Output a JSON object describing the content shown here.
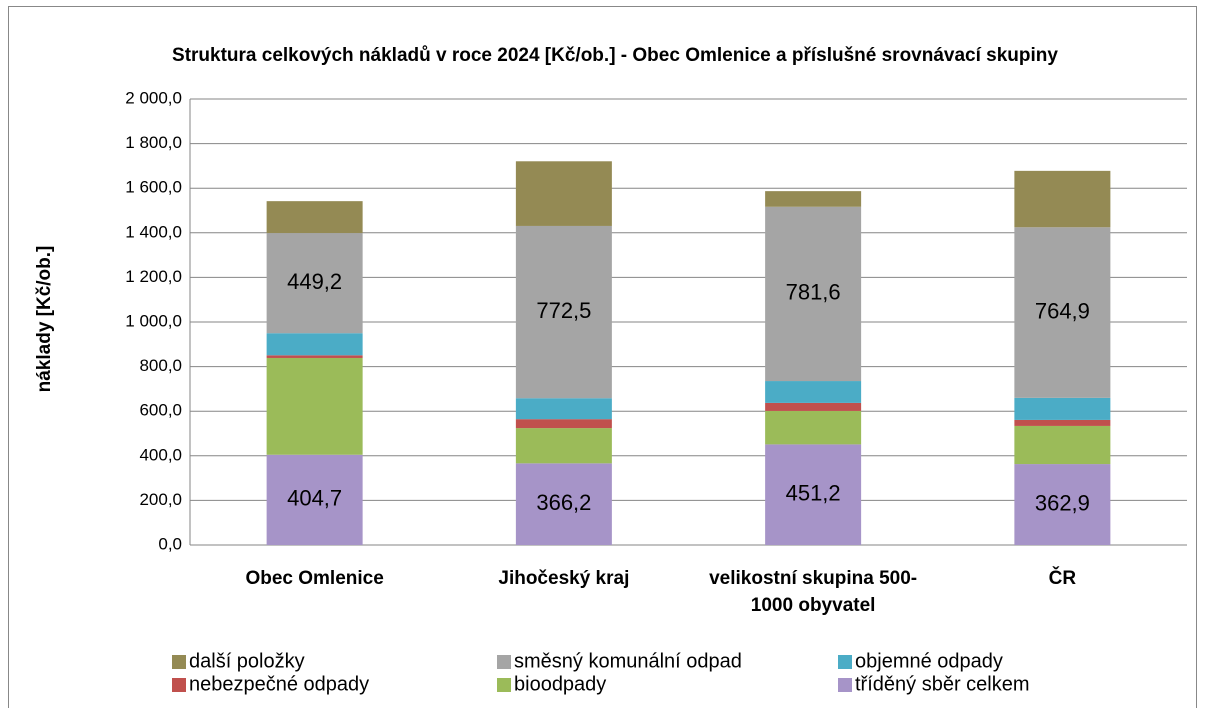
{
  "chart_data": {
    "type": "stacked_bar",
    "title": "Struktura celkových nákladů v roce 2024 [Kč/ob.] - Obec Omlenice a příslušné srovnávací skupiny",
    "y_label": "náklady [Kč/ob.]",
    "categories": [
      "Obec Omlenice",
      "Jihočeský kraj",
      "velikostní skupina 500-1000 obyvatel",
      "ČR"
    ],
    "ylim": [
      0,
      2000
    ],
    "yticks": [
      {
        "value": 0,
        "label": "0,0"
      },
      {
        "value": 200,
        "label": "200,0"
      },
      {
        "value": 400,
        "label": "400,0"
      },
      {
        "value": 600,
        "label": "600,0"
      },
      {
        "value": 800,
        "label": "800,0"
      },
      {
        "value": 1000,
        "label": "1 000,0"
      },
      {
        "value": 1200,
        "label": "1 200,0"
      },
      {
        "value": 1400,
        "label": "1 400,0"
      },
      {
        "value": 1600,
        "label": "1 600,0"
      },
      {
        "value": 1800,
        "label": "1 800,0"
      },
      {
        "value": 2000,
        "label": "2 000,0"
      }
    ],
    "grid": true,
    "series": [
      {
        "name": "tříděný sběr celkem",
        "color": "#a694c8",
        "values": [
          404.7,
          366.2,
          451.2,
          362.9
        ],
        "value_labels": [
          "404,7",
          "366,2",
          "451,2",
          "362,9"
        ]
      },
      {
        "name": "bioodpady",
        "color": "#9bbb59",
        "values": [
          434,
          158,
          150,
          171
        ]
      },
      {
        "name": "nebezpečné odpady",
        "color": "#c0504d",
        "values": [
          12,
          40,
          36,
          27
        ]
      },
      {
        "name": "objemné odpady",
        "color": "#4bacc6",
        "values": [
          99,
          94,
          98,
          99
        ]
      },
      {
        "name": "směsný komunální odpad",
        "color": "#a5a5a5",
        "values": [
          449.2,
          772.5,
          781.6,
          764.9
        ],
        "value_labels": [
          "449,2",
          "772,5",
          "781,6",
          "764,9"
        ]
      },
      {
        "name": "další položky",
        "color": "#948a54",
        "values": [
          143,
          290,
          70,
          253
        ]
      }
    ]
  }
}
